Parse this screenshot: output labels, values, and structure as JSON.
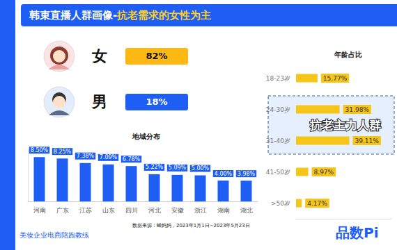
{
  "title": "韩束直播人群画像-",
  "title_highlight": "抗老需求的女性为主",
  "gender": [
    {
      "label": "女",
      "value_label": "82%",
      "color": "#fdb813"
    },
    {
      "label": "男",
      "value_label": "18%",
      "color": "#1e5ef5"
    }
  ],
  "chart_data": [
    {
      "type": "bar",
      "title": "地域分布",
      "categories": [
        "河南",
        "广东",
        "江苏",
        "山东",
        "四川",
        "河北",
        "安徽",
        "浙江",
        "湖南",
        "湖北"
      ],
      "values": [
        8.5,
        8.25,
        7.38,
        7.09,
        6.78,
        5.22,
        5.09,
        5.0,
        4.0,
        3.98
      ],
      "value_labels": [
        "8.50%",
        "8.25%",
        "7.38%",
        "7.09%",
        "6.78%",
        "5.22%",
        "5.09%",
        "5.00%",
        "4.00%",
        "3.98%"
      ],
      "color": "#1e5ef5",
      "ylim": [
        0,
        10
      ],
      "data_labels": true,
      "tick_labels": "x",
      "grid": false
    },
    {
      "type": "bar",
      "title": "年龄占比",
      "orientation": "horizontal",
      "categories": [
        "18-23岁",
        "24-30岁",
        "31-40岁",
        "41-50岁",
        ">50岁"
      ],
      "values": [
        15.77,
        31.98,
        39.11,
        8.97,
        4.17
      ],
      "value_labels": [
        "15.77%",
        "31.98%",
        "39.11%",
        "8.97%",
        "4.17%"
      ],
      "color": "#f5c518",
      "xlim": [
        0,
        70
      ],
      "data_labels": true,
      "tick_labels": "y",
      "grid": false,
      "annotation": {
        "text": "抗老主力人群",
        "categories": [
          "24-30岁",
          "31-40岁"
        ]
      }
    }
  ],
  "source": "数据来源：蝉妈妈，2023年1月1日~2023年5月23日",
  "footer": "美妆企业电商陪跑教练",
  "logo": "品数Pi"
}
